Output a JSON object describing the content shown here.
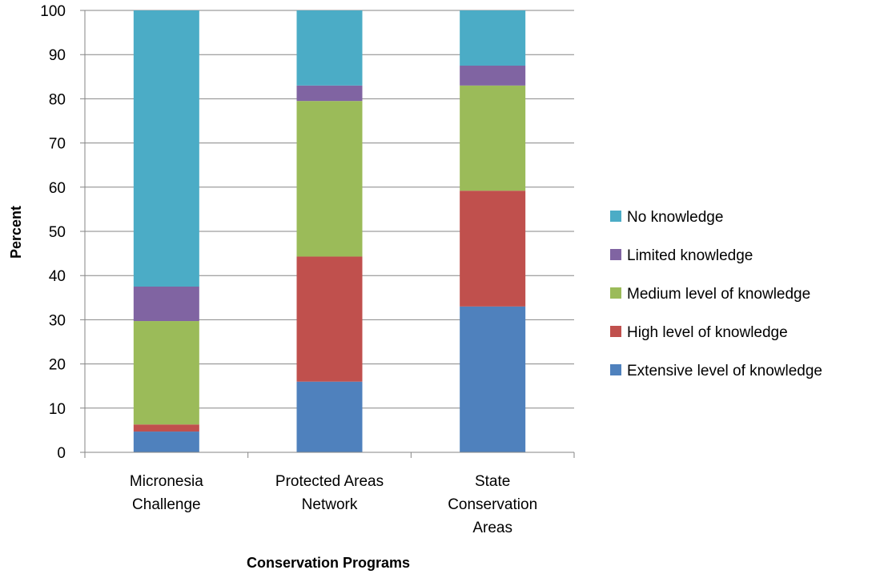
{
  "chart_data": {
    "type": "bar",
    "stacked": true,
    "title": "",
    "xlabel": "Conservation Programs",
    "ylabel": "Percent",
    "ylim": [
      0,
      100
    ],
    "yticks": [
      0,
      10,
      20,
      30,
      40,
      50,
      60,
      70,
      80,
      90,
      100
    ],
    "grid": "horizontal",
    "legend_position": "right",
    "categories": [
      [
        "Micronesia",
        "Challenge"
      ],
      [
        "Protected Areas",
        "Network"
      ],
      [
        "State",
        "Conservation",
        "Areas"
      ]
    ],
    "series": [
      {
        "name": "Extensive level of knowledge",
        "color": "#4f81bd",
        "values": [
          4.7,
          16.0,
          33.0
        ]
      },
      {
        "name": "High level of knowledge",
        "color": "#c0504d",
        "values": [
          1.6,
          28.3,
          26.2
        ]
      },
      {
        "name": "Medium level of knowledge",
        "color": "#9bbb59",
        "values": [
          23.4,
          35.2,
          23.8
        ]
      },
      {
        "name": "Limited knowledge",
        "color": "#8064a2",
        "values": [
          7.8,
          3.5,
          4.5
        ]
      },
      {
        "name": "No knowledge",
        "color": "#4bacc6",
        "values": [
          62.5,
          17.0,
          12.5
        ]
      }
    ],
    "legend_order": [
      "No knowledge",
      "Limited knowledge",
      "Medium level of knowledge",
      "High level of knowledge",
      "Extensive level of knowledge"
    ]
  }
}
